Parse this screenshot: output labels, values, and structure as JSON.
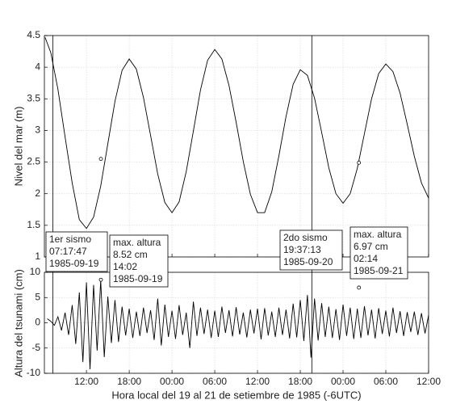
{
  "chart_data": [
    {
      "type": "line",
      "ylabel": "Nivel del mar (m)",
      "color": "#000000",
      "grid": true,
      "xlim": [
        6.1,
        60
      ],
      "ylim": [
        1,
        4.5
      ],
      "xticks": [
        12,
        18,
        24,
        30,
        36,
        42,
        48,
        54,
        60
      ],
      "yticks": [
        1,
        1.5,
        2,
        2.5,
        3,
        3.5,
        4,
        4.5
      ],
      "x": [
        6.2,
        7,
        8,
        9,
        10,
        11,
        12,
        13,
        14,
        15,
        16,
        17,
        18,
        19,
        20,
        21,
        22,
        23,
        24,
        25,
        26,
        27,
        28,
        29,
        30,
        31,
        32,
        33,
        34,
        35,
        36,
        37,
        38,
        39,
        40,
        41,
        42,
        43,
        44,
        45,
        46,
        47,
        48,
        49,
        50,
        51,
        52,
        53,
        54,
        55,
        56,
        57,
        58,
        59,
        60
      ],
      "values": [
        4.47,
        4.23,
        3.65,
        2.9,
        2.17,
        1.59,
        1.45,
        1.63,
        2.12,
        2.79,
        3.46,
        3.95,
        4.13,
        3.97,
        3.52,
        2.92,
        2.31,
        1.86,
        1.7,
        1.87,
        2.35,
        2.99,
        3.64,
        4.11,
        4.28,
        4.13,
        3.71,
        3.13,
        2.51,
        1.99,
        1.7,
        1.7,
        2.03,
        2.6,
        3.22,
        3.73,
        3.96,
        3.87,
        3.51,
        2.97,
        2.41,
        2.0,
        1.85,
        2.0,
        2.4,
        2.95,
        3.5,
        3.9,
        4.05,
        3.93,
        3.59,
        3.1,
        2.59,
        2.17,
        1.93
      ],
      "markers": {
        "x": [
          14.03,
          50.23
        ],
        "values": [
          2.55,
          2.49
        ]
      },
      "events": [
        7.296,
        43.62
      ],
      "annotations": [
        [
          "1er sismo",
          "07:17:47",
          "1985-09-19"
        ],
        [
          "max. altura",
          "8.52 cm",
          "14:02",
          "1985-09-19"
        ],
        [
          "2do sismo",
          "19:37:13",
          "1985-09-20"
        ],
        [
          "max. altura",
          "6.97 cm",
          "02:14",
          "1985-09-21"
        ]
      ]
    },
    {
      "type": "line",
      "ylabel": "Altura del tsunami (cm)",
      "xlabel": "Hora local del 19 al 21 de setiembre de 1985 (-6UTC)",
      "color": "#000000",
      "grid": true,
      "xlim": [
        6.1,
        60
      ],
      "ylim": [
        -10,
        10
      ],
      "xticks": [
        {
          "value": 12,
          "label": "12:00"
        },
        {
          "value": 18,
          "label": "18:00"
        },
        {
          "value": 24,
          "label": "00:00"
        },
        {
          "value": 30,
          "label": "06:00"
        },
        {
          "value": 36,
          "label": "12:00"
        },
        {
          "value": 42,
          "label": "18:00"
        },
        {
          "value": 48,
          "label": "00:00"
        },
        {
          "value": 54,
          "label": "06:00"
        },
        {
          "value": 60,
          "label": "12:00"
        }
      ],
      "yticks": [
        -10,
        -5,
        0,
        5,
        10
      ],
      "x": [
        6.5,
        7,
        7.5,
        8,
        8.5,
        9,
        9.5,
        10,
        10.5,
        11,
        11.5,
        12,
        12.5,
        13,
        13.5,
        14,
        14.5,
        15,
        15.5,
        16,
        16.5,
        17,
        17.5,
        18,
        18.5,
        19,
        19.5,
        20,
        20.5,
        21,
        21.5,
        22,
        22.5,
        23,
        23.5,
        24,
        24.5,
        25,
        25.5,
        26,
        26.5,
        27,
        27.5,
        28,
        28.5,
        29,
        29.5,
        30,
        30.5,
        31,
        31.5,
        32,
        32.5,
        33,
        33.5,
        34,
        34.5,
        35,
        35.5,
        36,
        36.5,
        37,
        37.5,
        38,
        38.5,
        39,
        39.5,
        40,
        40.5,
        41,
        41.5,
        42,
        42.5,
        43,
        43.5,
        44,
        44.5,
        45,
        45.5,
        46,
        46.5,
        47,
        47.5,
        48,
        48.5,
        49,
        49.5,
        50,
        50.5,
        51,
        51.5,
        52,
        52.5,
        53,
        53.5,
        54,
        54.5,
        55,
        55.5,
        56,
        56.5,
        57,
        57.5,
        58,
        58.5,
        59,
        59.5,
        60
      ],
      "values": [
        0.8,
        0.3,
        -0.5,
        1.2,
        -1.5,
        2.0,
        -2.4,
        3.5,
        -4.2,
        6.0,
        -7.8,
        8.0,
        -9.2,
        7.5,
        -5.5,
        8.4,
        -6.8,
        5.2,
        -4.0,
        4.5,
        -3.8,
        3.2,
        -2.5,
        2.8,
        -3.0,
        2.2,
        -2.6,
        3.0,
        -2.0,
        2.5,
        -3.4,
        4.8,
        -4.5,
        3.6,
        -2.8,
        2.4,
        -3.2,
        3.5,
        -2.4,
        2.0,
        -5.0,
        4.2,
        -2.6,
        3.0,
        -2.2,
        2.6,
        -3.0,
        2.4,
        -2.8,
        3.2,
        -2.0,
        2.5,
        -2.7,
        3.1,
        -2.3,
        2.0,
        -2.9,
        2.6,
        -2.1,
        2.8,
        -3.3,
        2.9,
        -2.5,
        2.2,
        -2.8,
        3.0,
        -2.4,
        2.6,
        -3.1,
        3.8,
        -2.9,
        4.5,
        -3.6,
        5.5,
        -6.9,
        4.8,
        -3.5,
        3.9,
        -2.8,
        3.2,
        -3.0,
        2.7,
        -3.4,
        3.6,
        -2.6,
        3.0,
        -3.2,
        2.8,
        -3.0,
        3.3,
        -2.5,
        2.6,
        -3.1,
        2.9,
        -2.2,
        2.4,
        -2.7,
        3.0,
        -2.0,
        2.3,
        -2.6,
        2.1,
        -1.8,
        2.2,
        -2.4,
        1.9,
        -2.1,
        1.5
      ],
      "markers": {
        "x": [
          14.03,
          50.23
        ],
        "values": [
          8.52,
          6.97
        ]
      }
    }
  ]
}
